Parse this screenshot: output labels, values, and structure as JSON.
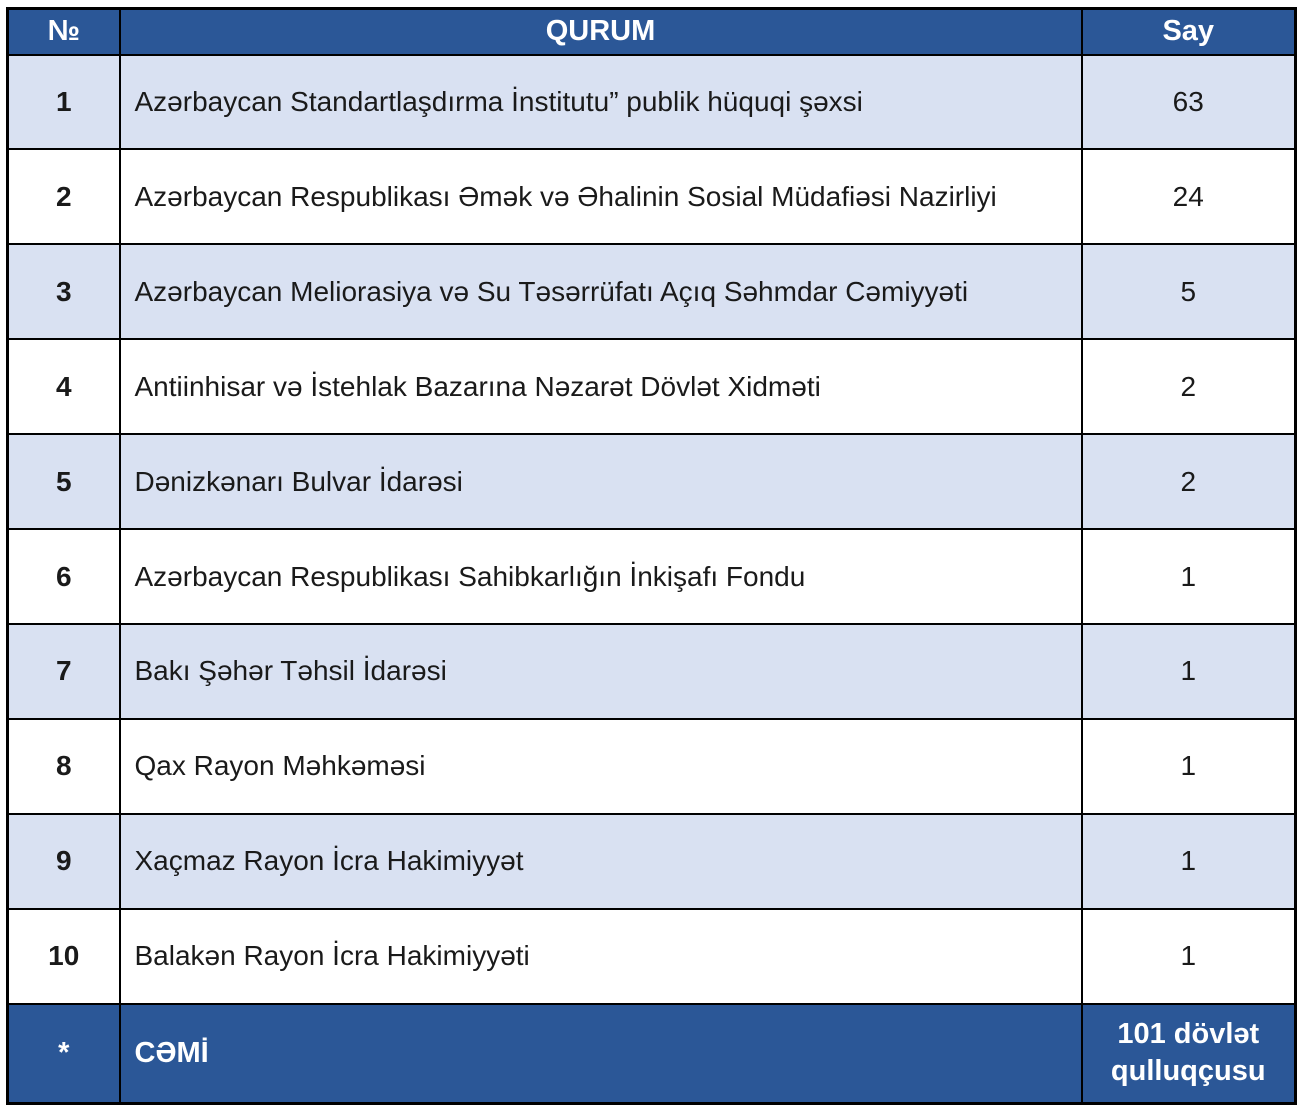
{
  "table": {
    "headers": {
      "num": "№",
      "qurum": "QURUM",
      "say": "Say"
    },
    "rows": [
      {
        "num": "1",
        "qurum": "Azərbaycan Standartlaşdırma İnstitutu” publik hüquqi şəxsi",
        "say": "63"
      },
      {
        "num": "2",
        "qurum": "Azərbaycan Respublikası Əmək və Əhalinin Sosial Müdafiəsi Nazirliyi",
        "say": "24"
      },
      {
        "num": "3",
        "qurum": "Azərbaycan Meliorasiya və Su Təsərrüfatı Açıq Səhmdar Cəmiyyəti",
        "say": "5"
      },
      {
        "num": "4",
        "qurum": "Antiinhisar və İstehlak Bazarına Nəzarət Dövlət Xidməti",
        "say": "2"
      },
      {
        "num": "5",
        "qurum": "Dənizkənarı Bulvar İdarəsi",
        "say": "2"
      },
      {
        "num": "6",
        "qurum": "Azərbaycan Respublikası Sahibkarlığın İnkişafı Fondu",
        "say": "1"
      },
      {
        "num": "7",
        "qurum": "Bakı Şəhər Təhsil İdarəsi",
        "say": "1"
      },
      {
        "num": "8",
        "qurum": "Qax Rayon Məhkəməsi",
        "say": "1"
      },
      {
        "num": "9",
        "qurum": "Xaçmaz Rayon İcra Hakimiyyət",
        "say": "1"
      },
      {
        "num": "10",
        "qurum": "Balakən Rayon İcra Hakimiyyəti",
        "say": "1"
      }
    ],
    "footer": {
      "num": "*",
      "qurum": "CƏMİ",
      "say": "101 dövlət qulluqçusu"
    }
  },
  "colors": {
    "header_bg": "#2b5797",
    "footer_bg": "#2b5797",
    "row_alt_bg": "#d9e1f2",
    "border": "#000000",
    "header_text": "#ffffff"
  }
}
